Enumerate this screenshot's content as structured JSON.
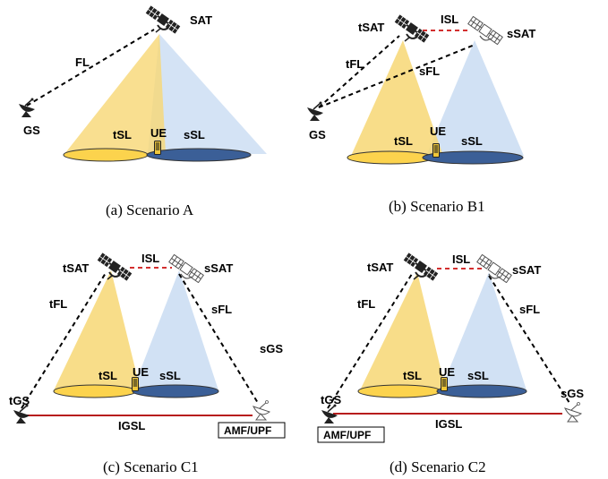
{
  "colors": {
    "target_beam": "#f7d774",
    "source_beam": "#c9dcf2",
    "target_footprint": "#fcd34d",
    "source_footprint": "#3b5f97",
    "isl_line": "#d32f2f",
    "igsl_line": "#b71c1c",
    "feeder_line": "#000000"
  },
  "icons": [
    "satellite-icon",
    "ground-station-icon",
    "ue-phone-icon"
  ],
  "panels": {
    "a": {
      "caption": "(a) Scenario A",
      "sat": "SAT",
      "fl": "FL",
      "gs": "GS",
      "tsl": "tSL",
      "ssl": "sSL",
      "ue": "UE"
    },
    "b1": {
      "caption": "(b) Scenario B1",
      "tsat": "tSAT",
      "ssat": "sSAT",
      "isl": "ISL",
      "tfl": "tFL",
      "sfl": "sFL",
      "gs": "GS",
      "tsl": "tSL",
      "ssl": "sSL",
      "ue": "UE"
    },
    "c1": {
      "caption": "(c) Scenario C1",
      "tsat": "tSAT",
      "ssat": "sSAT",
      "isl": "ISL",
      "tfl": "tFL",
      "sfl": "sFL",
      "sgs": "sGS",
      "tgs": "tGS",
      "igsl": "IGSL",
      "amf": "AMF/UPF",
      "tsl": "tSL",
      "ssl": "sSL",
      "ue": "UE"
    },
    "c2": {
      "caption": "(d) Scenario C2",
      "tsat": "tSAT",
      "ssat": "sSAT",
      "isl": "ISL",
      "tfl": "tFL",
      "sfl": "sFL",
      "sgs": "sGS",
      "tgs": "tGS",
      "igsl": "IGSL",
      "amf": "AMF/UPF",
      "tsl": "tSL",
      "ssl": "sSL",
      "ue": "UE"
    }
  }
}
